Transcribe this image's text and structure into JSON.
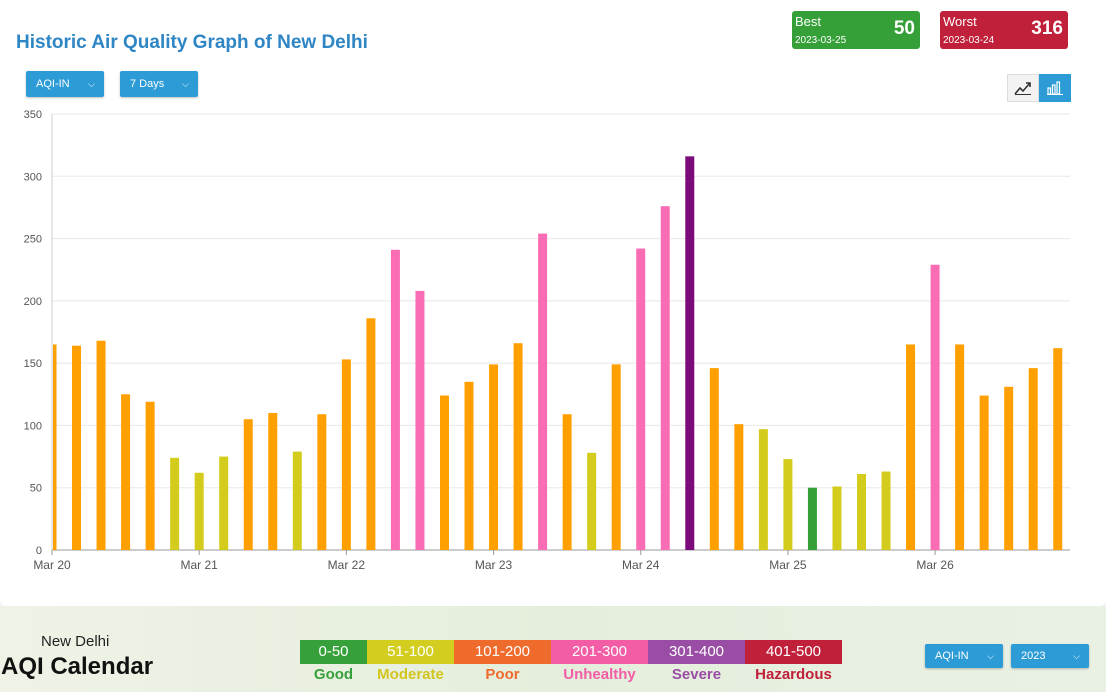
{
  "header": {
    "title": "Historic Air Quality Graph of New Delhi",
    "metric_dropdown": "AQI-IN",
    "range_dropdown": "7 Days"
  },
  "best": {
    "label": "Best",
    "date": "2023-03-25",
    "value": "50",
    "color": "#34a037"
  },
  "worst": {
    "label": "Worst",
    "date": "2023-03-24",
    "value": "316",
    "color": "#c0203a"
  },
  "view_toggle": {
    "line_icon": "line-chart-icon",
    "bar_icon": "bar-chart-icon",
    "active": "bar"
  },
  "chart_data": {
    "type": "bar",
    "ylim": [
      0,
      350
    ],
    "yticks": [
      0,
      50,
      100,
      150,
      200,
      250,
      300,
      350
    ],
    "xtick_labels": [
      {
        "label": "Mar 20",
        "index": 0
      },
      {
        "label": "Mar 21",
        "index": 6
      },
      {
        "label": "Mar 22",
        "index": 12
      },
      {
        "label": "Mar 23",
        "index": 18
      },
      {
        "label": "Mar 24",
        "index": 24
      },
      {
        "label": "Mar 25",
        "index": 30
      },
      {
        "label": "Mar 26",
        "index": 36
      }
    ],
    "values": [
      165,
      164,
      168,
      125,
      119,
      74,
      62,
      75,
      105,
      110,
      79,
      109,
      153,
      186,
      241,
      208,
      124,
      135,
      149,
      166,
      254,
      109,
      78,
      149,
      242,
      276,
      316,
      146,
      101,
      97,
      73,
      50,
      51,
      61,
      63,
      165,
      229,
      165,
      124,
      131,
      146,
      162
    ],
    "grid": true,
    "colors": {
      "good": "#34a037",
      "moderate": "#d4cc1c",
      "poor": "#ffa000",
      "unhealthy": "#fa6db5",
      "severe": "#7b0a7b"
    }
  },
  "calendar": {
    "city": "New Delhi",
    "title": "AQI Calendar",
    "metric_dropdown": "AQI-IN",
    "year_dropdown": "2023"
  },
  "legend": [
    {
      "range": "0-50",
      "name": "Good",
      "color": "#36a13a",
      "text_color": "#36a13a"
    },
    {
      "range": "51-100",
      "name": "Moderate",
      "color": "#d2cd1e",
      "text_color": "#d2c51e"
    },
    {
      "range": "101-200",
      "name": "Poor",
      "color": "#ef6b2c",
      "text_color": "#ef6b2c"
    },
    {
      "range": "201-300",
      "name": "Unhealthy",
      "color": "#f25da6",
      "text_color": "#f25da6"
    },
    {
      "range": "301-400",
      "name": "Severe",
      "color": "#9a4da5",
      "text_color": "#9a4da5"
    },
    {
      "range": "401-500",
      "name": "Hazardous",
      "color": "#c0203a",
      "text_color": "#c0203a"
    }
  ]
}
